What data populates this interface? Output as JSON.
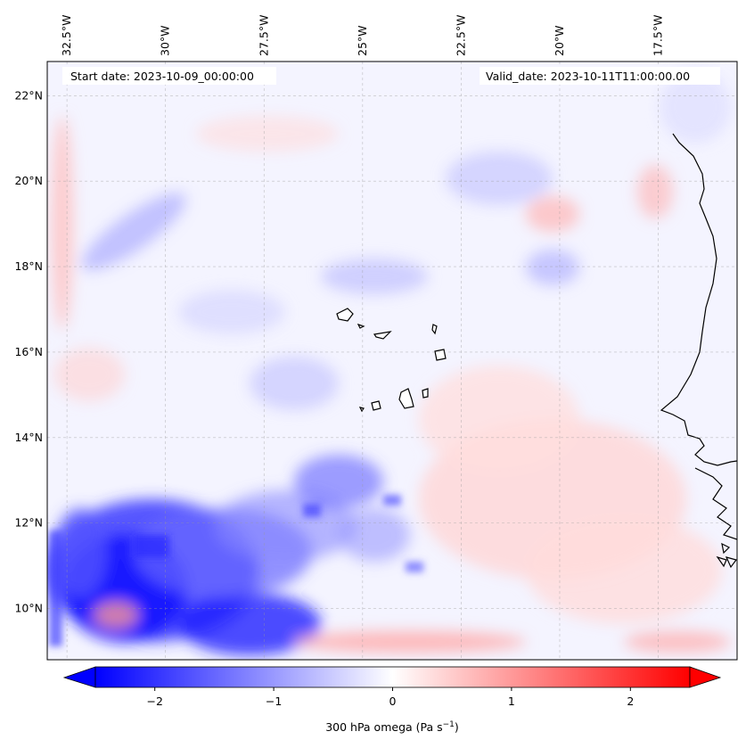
{
  "map": {
    "start_label": "Start date: 2023-10-09_00:00:00",
    "valid_label": "Valid_date: 2023-10-11T11:00:00.00",
    "extent": {
      "lon": [
        -33.0,
        -15.5
      ],
      "lat": [
        8.8,
        22.8
      ]
    },
    "lon_ticks": [
      {
        "value": -32.5,
        "label": "32.5°W"
      },
      {
        "value": -30.0,
        "label": "30°W"
      },
      {
        "value": -27.5,
        "label": "27.5°W"
      },
      {
        "value": -25.0,
        "label": "25°W"
      },
      {
        "value": -22.5,
        "label": "22.5°W"
      },
      {
        "value": -20.0,
        "label": "20°W"
      },
      {
        "value": -17.5,
        "label": "17.5°W"
      }
    ],
    "lat_ticks": [
      {
        "value": 22,
        "label": "22°N"
      },
      {
        "value": 20,
        "label": "20°N"
      },
      {
        "value": 18,
        "label": "18°N"
      },
      {
        "value": 16,
        "label": "16°N"
      },
      {
        "value": 14,
        "label": "14°N"
      },
      {
        "value": 12,
        "label": "12°N"
      },
      {
        "value": 10,
        "label": "10°N"
      }
    ],
    "grid": true,
    "field_colors": {
      "negative": "#0000ff",
      "zero": "#ffffff",
      "positive": "#ff0000"
    }
  },
  "colorbar": {
    "label_prefix": "300 hPa omega (Pa s",
    "label_exp": "−1",
    "label_suffix": ")",
    "range": [
      -2.5,
      2.5
    ],
    "extend": "both",
    "ticks": [
      {
        "value": -2,
        "label": "−2"
      },
      {
        "value": -1,
        "label": "−1"
      },
      {
        "value": 0,
        "label": "0"
      },
      {
        "value": 1,
        "label": "1"
      },
      {
        "value": 2,
        "label": "2"
      }
    ]
  }
}
